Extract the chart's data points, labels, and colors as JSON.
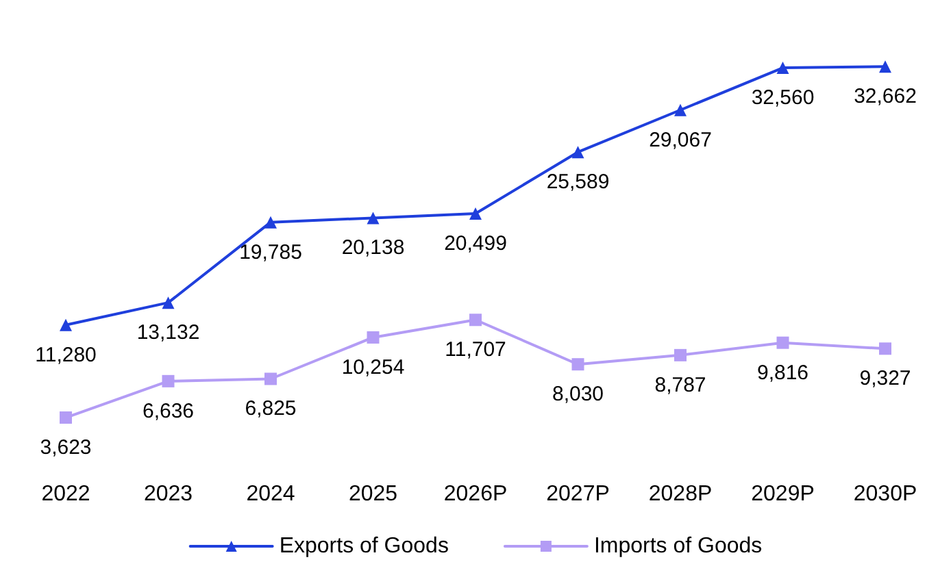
{
  "chart_data": {
    "type": "line",
    "categories": [
      "2022",
      "2023",
      "2024",
      "2025",
      "2026P",
      "2027P",
      "2028P",
      "2029P",
      "2030P"
    ],
    "series": [
      {
        "name": "Exports of Goods",
        "color": "#1f3fdc",
        "marker": "triangle",
        "values": [
          11280,
          13132,
          19785,
          20138,
          20499,
          25589,
          29067,
          32560,
          32662
        ],
        "value_labels": [
          "11,280",
          "13,132",
          "19,785",
          "20,138",
          "20,499",
          "25,589",
          "29,067",
          "32,560",
          "32,662"
        ]
      },
      {
        "name": "Imports of Goods",
        "color": "#b39cf5",
        "marker": "square",
        "values": [
          3623,
          6636,
          6825,
          10254,
          11707,
          8030,
          8787,
          9816,
          9327
        ],
        "value_labels": [
          "3,623",
          "6,636",
          "6,825",
          "10,254",
          "11,707",
          "8,030",
          "8,787",
          "9,816",
          "9,327"
        ]
      }
    ],
    "legend": "bottom",
    "tick_labels": "x",
    "line_style": "solid"
  }
}
